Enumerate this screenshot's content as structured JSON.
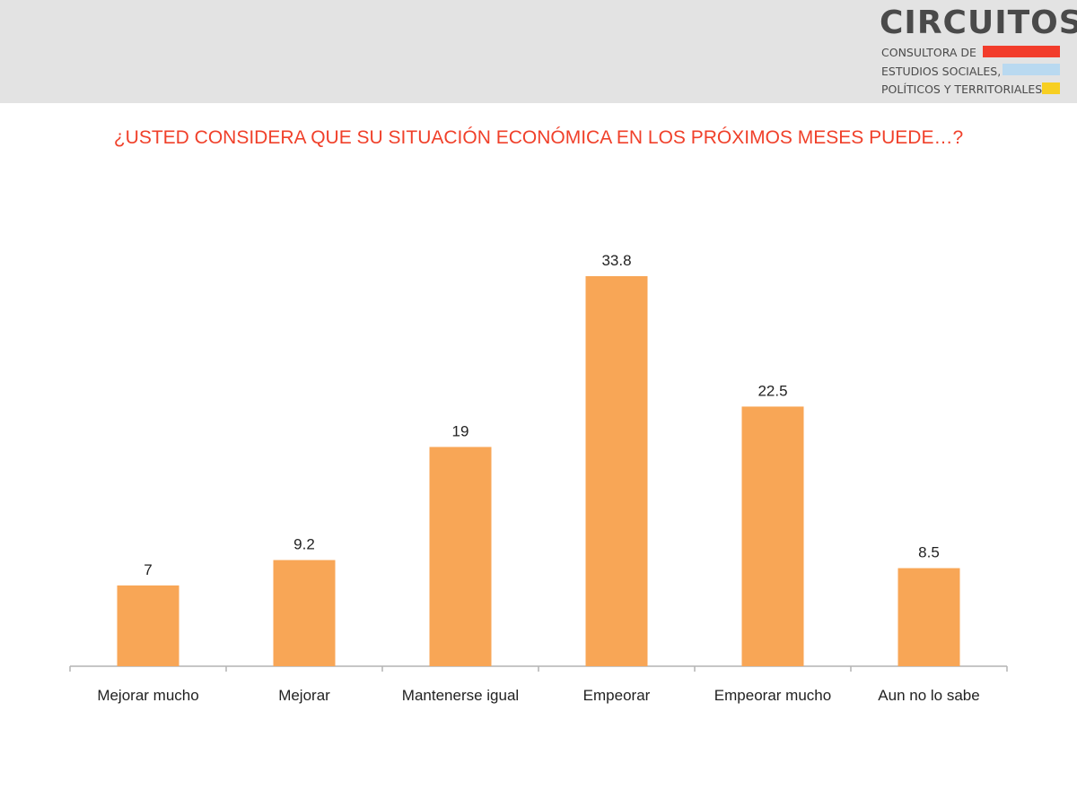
{
  "header": {
    "logo": {
      "title": "CIRCUITOS",
      "line1": "CONSULTORA DE",
      "line2": "ESTUDIOS SOCIALES,",
      "line3": "POLÍTICOS Y TERRITORIALES",
      "stripe_colors": [
        "#f23c2b",
        "#b9d9f0",
        "#f7cf22"
      ]
    }
  },
  "chart_data": {
    "type": "bar",
    "title": "¿USTED CONSIDERA QUE SU SITUACIÓN ECONÓMICA EN LOS PRÓXIMOS MESES PUEDE…?",
    "categories": [
      "Mejorar mucho",
      "Mejorar",
      "Mantenerse igual",
      "Empeorar",
      "Empeorar mucho",
      "Aun no lo sabe"
    ],
    "values": [
      7,
      9.2,
      19,
      33.8,
      22.5,
      8.5
    ],
    "value_labels": [
      "7",
      "9.2",
      "19",
      "33.8",
      "22.5",
      "8.5"
    ],
    "ylim": [
      0,
      40
    ],
    "grid": false,
    "bar_color": "#f8a656",
    "title_color": "#f0402a"
  }
}
